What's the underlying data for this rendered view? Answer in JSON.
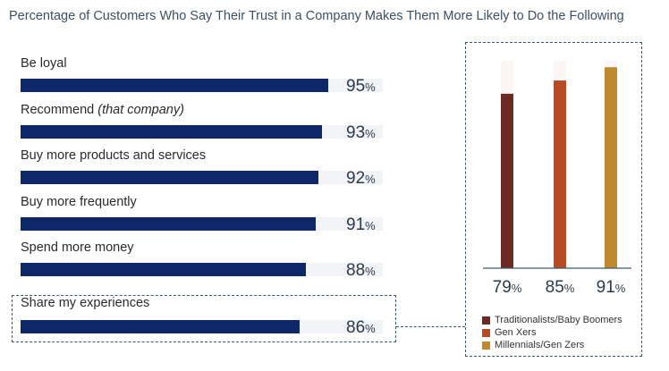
{
  "chart_data": [
    {
      "type": "bar",
      "orientation": "horizontal",
      "title": "Percentage of Customers Who Say Their Trust in a Company Makes Them More Likely to Do the Following",
      "categories": [
        {
          "label": "Be loyal",
          "suffix": ""
        },
        {
          "label": "Recommend ",
          "suffix": "(that company)"
        },
        {
          "label": "Buy more products and services",
          "suffix": ""
        },
        {
          "label": "Buy more frequently",
          "suffix": ""
        },
        {
          "label": "Spend more money",
          "suffix": ""
        },
        {
          "label": "Share my experiences",
          "suffix": ""
        }
      ],
      "values": [
        95,
        93,
        92,
        91,
        88,
        86
      ],
      "unit": "%",
      "xlim": [
        0,
        100
      ],
      "highlighted_category": "Share my experiences",
      "bar_color": "#0d2768",
      "track_color": "#f1f3f6"
    },
    {
      "type": "bar",
      "orientation": "vertical",
      "subtitle": "Share my experiences",
      "series": [
        {
          "name": "Traditionalists/Baby Boomers",
          "value": 79,
          "color": "#6b2a22"
        },
        {
          "name": "Gen Xers",
          "value": 85,
          "color": "#b84a26"
        },
        {
          "name": "Millennials/Gen Zers",
          "value": 91,
          "color": "#c0892f"
        }
      ],
      "unit": "%",
      "ylim": [
        0,
        100
      ],
      "track_color": "#fbf6f3"
    }
  ]
}
